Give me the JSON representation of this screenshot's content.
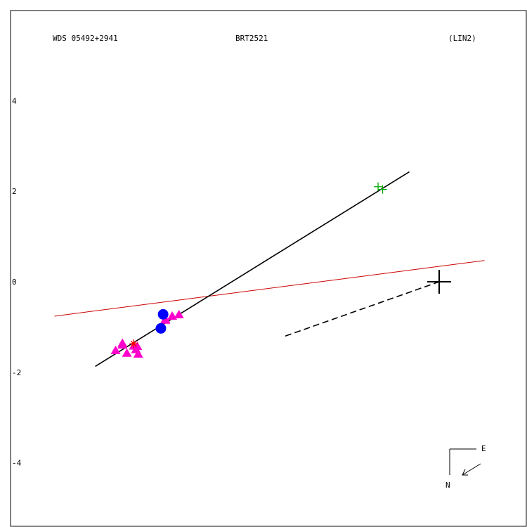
{
  "header": {
    "left": "WDS 05492+2941",
    "center": "BRT2521",
    "right": "(LIN2)"
  },
  "compass": {
    "east": "E",
    "north": "N"
  },
  "chart_data": {
    "type": "scatter",
    "title": "",
    "xlabel": "",
    "ylabel": "",
    "y_ticks": [
      "4",
      "2",
      "0",
      "-2",
      "-4"
    ],
    "y_tick_values": [
      4,
      2,
      0,
      -2,
      -4
    ],
    "xlim": [
      -5.5,
      6.0
    ],
    "ylim": [
      -5.4,
      5.9
    ],
    "grid": false,
    "colors": {
      "measure": "#ff00cc",
      "recent": "#0000ff",
      "speckle": "#00aa00",
      "highlight": "#ff0000",
      "ref_line": "#cc0000",
      "fit_line": "#000000"
    },
    "primary": {
      "x": 0.0,
      "y": 0.0
    },
    "fit_line": {
      "x1": -4.5,
      "y1": -1.87,
      "x2": 1.9,
      "y2": 2.43
    },
    "red_line": {
      "x1": -5.5,
      "y1": -0.76,
      "x2": 1.0,
      "y2": 0.47
    },
    "dashed_line": {
      "x1": -3.4,
      "y1": -1.2,
      "x2": 0.0,
      "y2": 0.0
    },
    "series": [
      {
        "marker": "triangle",
        "points": [
          [
            -4.1,
            -1.52
          ],
          [
            -3.95,
            -1.36
          ],
          [
            -3.85,
            -1.58
          ],
          [
            -3.7,
            -1.42
          ],
          [
            -3.6,
            -1.6
          ],
          [
            -3.65,
            -1.5
          ],
          [
            -3.62,
            -1.43
          ],
          [
            -3.95,
            -1.4
          ],
          [
            -3.0,
            -0.83
          ],
          [
            -2.85,
            -0.76
          ],
          [
            -3.0,
            -0.85
          ],
          [
            -2.7,
            -0.73
          ]
        ]
      },
      {
        "marker": "circle",
        "points": [
          [
            -3.05,
            -0.72
          ],
          [
            -3.1,
            -1.03
          ]
        ]
      },
      {
        "marker": "plus",
        "points": [
          [
            1.3,
            2.1
          ],
          [
            1.4,
            2.04
          ]
        ]
      },
      {
        "marker": "star",
        "points": [
          [
            -3.7,
            -1.37
          ]
        ]
      }
    ]
  }
}
